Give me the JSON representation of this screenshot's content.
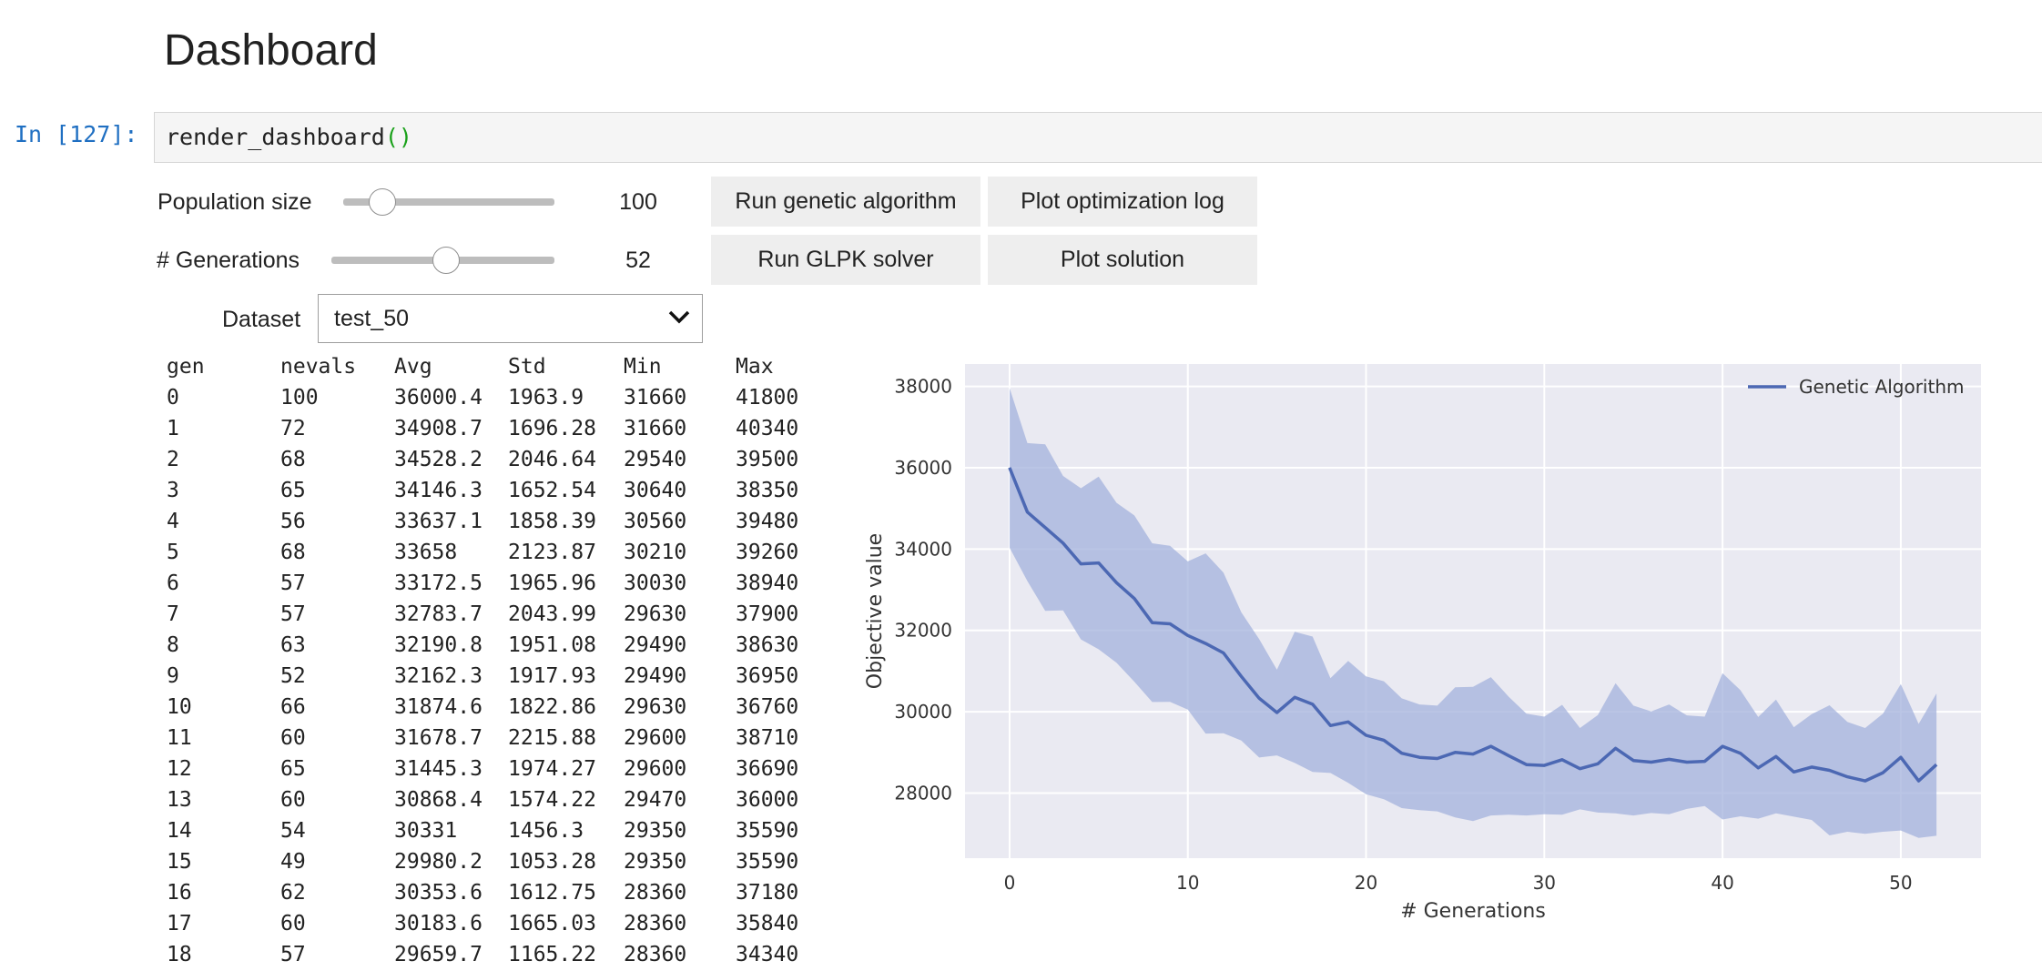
{
  "page": {
    "title": "Dashboard"
  },
  "cell": {
    "prompt": "In [127]:",
    "code_fn": "render_dashboard",
    "code_parens": "()"
  },
  "widgets": {
    "population": {
      "label": "Population size",
      "value": 100,
      "min": 10,
      "max": 500,
      "value_text": "100"
    },
    "generations": {
      "label": "# Generations",
      "value": 52,
      "min": 1,
      "max": 100,
      "value_text": "52"
    },
    "dataset": {
      "label": "Dataset",
      "value": "test_50"
    },
    "buttons": {
      "run_ga": "Run genetic algorithm",
      "plot_log": "Plot optimization log",
      "run_glpk": "Run GLPK solver",
      "plot_solution": "Plot solution"
    }
  },
  "log_table": {
    "headers": [
      "gen",
      "nevals",
      "Avg",
      "Std",
      "Min",
      "Max"
    ],
    "rows": [
      [
        "0",
        "100",
        "36000.4",
        "1963.9",
        "31660",
        "41800"
      ],
      [
        "1",
        "72",
        "34908.7",
        "1696.28",
        "31660",
        "40340"
      ],
      [
        "2",
        "68",
        "34528.2",
        "2046.64",
        "29540",
        "39500"
      ],
      [
        "3",
        "65",
        "34146.3",
        "1652.54",
        "30640",
        "38350"
      ],
      [
        "4",
        "56",
        "33637.1",
        "1858.39",
        "30560",
        "39480"
      ],
      [
        "5",
        "68",
        "33658",
        "2123.87",
        "30210",
        "39260"
      ],
      [
        "6",
        "57",
        "33172.5",
        "1965.96",
        "30030",
        "38940"
      ],
      [
        "7",
        "57",
        "32783.7",
        "2043.99",
        "29630",
        "37900"
      ],
      [
        "8",
        "63",
        "32190.8",
        "1951.08",
        "29490",
        "38630"
      ],
      [
        "9",
        "52",
        "32162.3",
        "1917.93",
        "29490",
        "36950"
      ],
      [
        "10",
        "66",
        "31874.6",
        "1822.86",
        "29630",
        "36760"
      ],
      [
        "11",
        "60",
        "31678.7",
        "2215.88",
        "29600",
        "38710"
      ],
      [
        "12",
        "65",
        "31445.3",
        "1974.27",
        "29600",
        "36690"
      ],
      [
        "13",
        "60",
        "30868.4",
        "1574.22",
        "29470",
        "36000"
      ],
      [
        "14",
        "54",
        "30331",
        "1456.3",
        "29350",
        "35590"
      ],
      [
        "15",
        "49",
        "29980.2",
        "1053.28",
        "29350",
        "35590"
      ],
      [
        "16",
        "62",
        "30353.6",
        "1612.75",
        "28360",
        "37180"
      ],
      [
        "17",
        "60",
        "30183.6",
        "1665.03",
        "28360",
        "35840"
      ],
      [
        "18",
        "57",
        "29659.7",
        "1165.22",
        "28360",
        "34340"
      ]
    ]
  },
  "chart_data": {
    "type": "line",
    "title": "",
    "xlabel": "# Generations",
    "ylabel": "Objective value",
    "xlim": [
      -2.5,
      54.5
    ],
    "ylim": [
      26400,
      38550
    ],
    "xticks": [
      0,
      10,
      20,
      30,
      40,
      50
    ],
    "yticks": [
      28000,
      30000,
      32000,
      34000,
      36000,
      38000
    ],
    "grid": true,
    "legend_position": "top-right",
    "background_color": "#eaeaf2",
    "line_color": "#4c68b3",
    "band_color": "#a3b2dc",
    "series": [
      {
        "name": "Genetic Algorithm",
        "x": [
          0,
          1,
          2,
          3,
          4,
          5,
          6,
          7,
          8,
          9,
          10,
          11,
          12,
          13,
          14,
          15,
          16,
          17,
          18,
          19,
          20,
          21,
          22,
          23,
          24,
          25,
          26,
          27,
          28,
          29,
          30,
          31,
          32,
          33,
          34,
          35,
          36,
          37,
          38,
          39,
          40,
          41,
          42,
          43,
          44,
          45,
          46,
          47,
          48,
          49,
          50,
          51,
          52
        ],
        "values": [
          36000.4,
          34908.7,
          34528.2,
          34146.3,
          33637.1,
          33658,
          33172.5,
          32783.7,
          32190.8,
          32162.3,
          31874.6,
          31678.7,
          31445.3,
          30868.4,
          30331,
          29980.2,
          30353.6,
          30183.6,
          29659.7,
          29750,
          29420,
          29300,
          28980,
          28880,
          28850,
          29000,
          28960,
          29150,
          28920,
          28700,
          28680,
          28820,
          28600,
          28720,
          29100,
          28800,
          28760,
          28830,
          28760,
          28780,
          29150,
          28980,
          28620,
          28900,
          28520,
          28640,
          28560,
          28400,
          28300,
          28500,
          28880,
          28300,
          28700
        ],
        "std": [
          1963.9,
          1696.28,
          2046.64,
          1652.54,
          1858.39,
          2123.87,
          1965.96,
          2043.99,
          1951.08,
          1917.93,
          1822.86,
          2215.88,
          1974.27,
          1574.22,
          1456.3,
          1053.28,
          1612.75,
          1665.03,
          1165.22,
          1500,
          1450,
          1450,
          1350,
          1300,
          1300,
          1600,
          1650,
          1700,
          1450,
          1250,
          1200,
          1350,
          1000,
          1200,
          1600,
          1350,
          1250,
          1350,
          1150,
          1100,
          1800,
          1550,
          1250,
          1400,
          1100,
          1300,
          1600,
          1350,
          1300,
          1450,
          1800,
          1400,
          1750
        ]
      }
    ]
  }
}
